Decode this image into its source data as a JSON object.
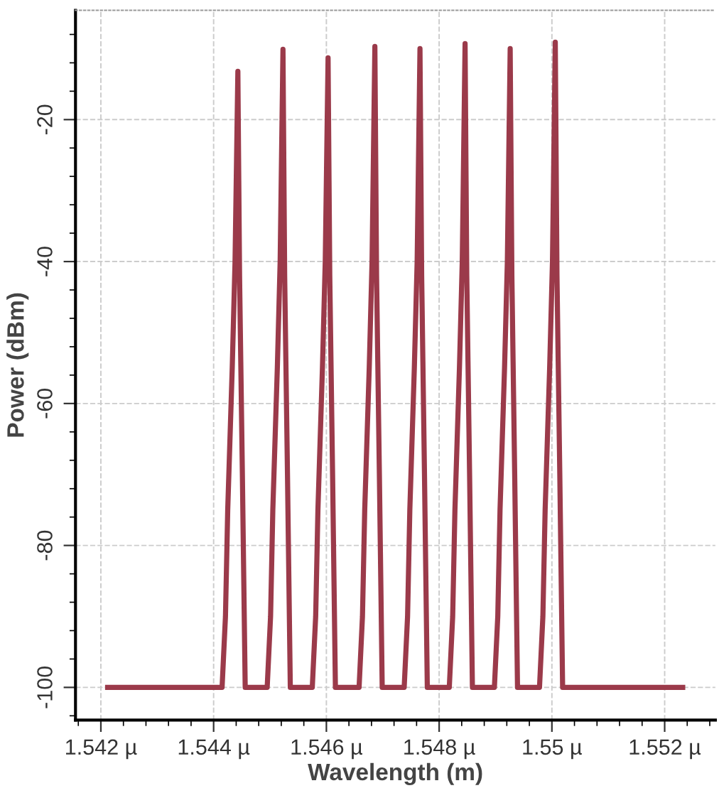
{
  "chart_data": {
    "type": "line",
    "xlabel": "Wavelength (m)",
    "ylabel": "Power (dBm)",
    "xlim": [
      1.54155,
      1.5529
    ],
    "ylim": [
      -104.6,
      -4.6
    ],
    "xticks": [
      {
        "value": 1.542,
        "label": "1.542 µ"
      },
      {
        "value": 1.544,
        "label": "1.544 µ"
      },
      {
        "value": 1.546,
        "label": "1.546 µ"
      },
      {
        "value": 1.548,
        "label": "1.548 µ"
      },
      {
        "value": 1.55,
        "label": "1.55 µ"
      },
      {
        "value": 1.552,
        "label": "1.552 µ"
      }
    ],
    "yticks": [
      -100,
      -80,
      -60,
      -40,
      -20
    ],
    "grid": true,
    "marker": "none",
    "line_style": "solid",
    "series": [
      {
        "color": "#9b3a4a",
        "x": [
          1.54212,
          1.54415,
          1.54421,
          1.54425,
          1.54433,
          1.54438,
          1.54443,
          1.54446,
          1.54451,
          1.54456,
          1.54495,
          1.54501,
          1.54505,
          1.54513,
          1.54518,
          1.54523,
          1.54526,
          1.54531,
          1.54536,
          1.54575,
          1.54581,
          1.54585,
          1.54593,
          1.54598,
          1.54603,
          1.54606,
          1.54611,
          1.54616,
          1.54658,
          1.54664,
          1.54668,
          1.54676,
          1.54681,
          1.54686,
          1.54689,
          1.54694,
          1.54699,
          1.54738,
          1.54744,
          1.54748,
          1.54756,
          1.54761,
          1.54766,
          1.54769,
          1.54774,
          1.54779,
          1.54818,
          1.54824,
          1.54828,
          1.54836,
          1.54841,
          1.54846,
          1.54849,
          1.54854,
          1.54859,
          1.54898,
          1.54904,
          1.54908,
          1.54916,
          1.54921,
          1.54926,
          1.54929,
          1.54934,
          1.54939,
          1.54978,
          1.54984,
          1.54988,
          1.54996,
          1.55001,
          1.55006,
          1.55009,
          1.55014,
          1.55019,
          1.55232
        ],
        "values": [
          -100,
          -100,
          -90,
          -75,
          -55,
          -40,
          -13.2,
          -42,
          -70,
          -100,
          -100,
          -90,
          -75,
          -55,
          -40,
          -10.1,
          -42,
          -70,
          -100,
          -100,
          -90,
          -75,
          -55,
          -40,
          -11.3,
          -42,
          -70,
          -100,
          -100,
          -90,
          -75,
          -55,
          -40,
          -9.7,
          -42,
          -70,
          -100,
          -100,
          -90,
          -75,
          -55,
          -40,
          -10,
          -42,
          -70,
          -100,
          -100,
          -90,
          -75,
          -55,
          -40,
          -9.3,
          -42,
          -70,
          -100,
          -100,
          -90,
          -75,
          -55,
          -40,
          -10,
          -42,
          -70,
          -100,
          -100,
          -90,
          -75,
          -55,
          -40,
          -9.1,
          -42,
          -70,
          -100,
          -100
        ]
      }
    ]
  }
}
